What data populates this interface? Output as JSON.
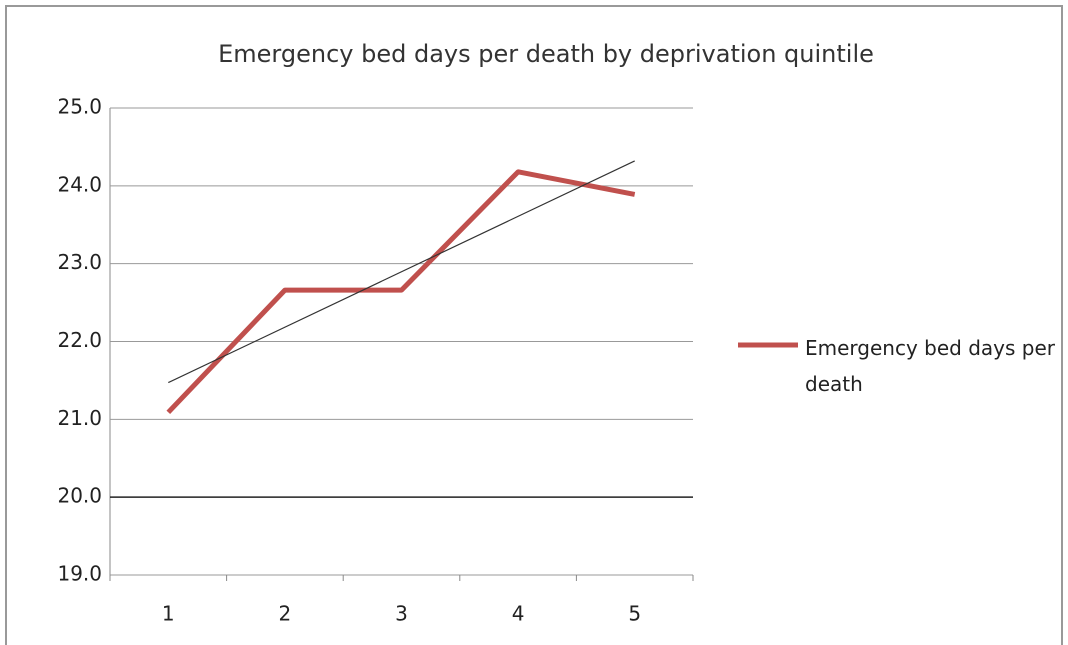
{
  "chart_data": {
    "type": "line",
    "title": "Emergency bed days per death by deprivation quintile",
    "categories": [
      "1",
      "2",
      "3",
      "4",
      "5"
    ],
    "series": [
      {
        "name": "Emergency bed days per death",
        "color": "#c0504d",
        "values": [
          21.09,
          22.66,
          22.66,
          24.18,
          23.89
        ]
      }
    ],
    "ylim": [
      19,
      25
    ],
    "yticks": [
      {
        "value": 19,
        "label": "19.0"
      },
      {
        "value": 20,
        "label": "20.0"
      },
      {
        "value": 21,
        "label": "21.0"
      },
      {
        "value": 22,
        "label": "22.0"
      },
      {
        "value": 23,
        "label": "23.0"
      },
      {
        "value": 24,
        "label": "24.0"
      },
      {
        "value": 25,
        "label": "25.0"
      }
    ],
    "grid": true,
    "reference_line": 20,
    "trendline": true,
    "trendline_color": "#333333",
    "legend": "right"
  }
}
